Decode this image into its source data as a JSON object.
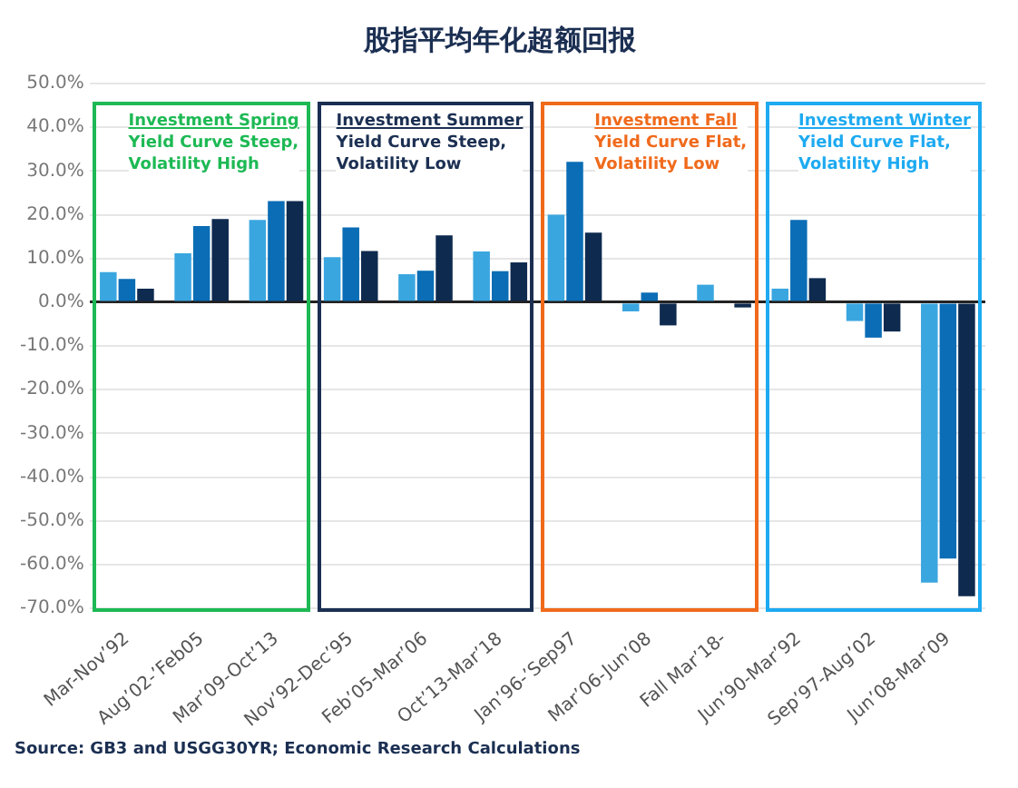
{
  "chart_data": {
    "type": "bar",
    "title": "股指平均年化超额回报",
    "categories": [
      "Mar-Nov’92",
      "Aug’02-’Feb05",
      "Mar’09-Oct’13",
      "Nov’92-Dec’95",
      "Feb’05-Mar’06",
      "Oct’13-Mar’18",
      "Jan’96-’Sep97",
      "Mar’06-Jun’08",
      "Fall Mar’18-",
      "Jun’90-Mar’92",
      "Sep’97-Aug’02",
      "Jun’08-Mar’09"
    ],
    "series": [
      {
        "color": "#3aa6e0",
        "values": [
          6.9,
          11.2,
          18.8,
          10.3,
          6.4,
          11.6,
          20.0,
          -2.1,
          4.0,
          3.1,
          -4.3,
          -64.1
        ]
      },
      {
        "color": "#0a6db5",
        "values": [
          5.3,
          17.4,
          23.1,
          17.1,
          7.2,
          7.1,
          32.1,
          2.2,
          0,
          18.8,
          -8.1,
          -58.6
        ]
      },
      {
        "color": "#0e2a4f",
        "values": [
          3.1,
          19.0,
          23.1,
          11.7,
          15.3,
          9.1,
          15.9,
          -5.3,
          -1.2,
          5.5,
          -6.7,
          -67.2
        ]
      }
    ],
    "ylim": [
      -70,
      50
    ],
    "yticks": [
      {
        "value": -70,
        "label": "-70.0%"
      },
      {
        "value": -60,
        "label": "-60.0%"
      },
      {
        "value": -50,
        "label": "-50.0%"
      },
      {
        "value": -40,
        "label": "-40.0%"
      },
      {
        "value": -30,
        "label": "-30.0%"
      },
      {
        "value": -20,
        "label": "-20.0%"
      },
      {
        "value": -10,
        "label": "-10.0%"
      },
      {
        "value": 0,
        "label": "0.0%"
      },
      {
        "value": 10,
        "label": "10.0%"
      },
      {
        "value": 20,
        "label": "20.0%"
      },
      {
        "value": 30,
        "label": "30.0%"
      },
      {
        "value": 40,
        "label": "40.0%"
      },
      {
        "value": 50,
        "label": "50.0%"
      }
    ],
    "grid": "y",
    "annotations": [
      "Investment Spring\nYield Curve Steep,\nVolatility High",
      "Investment Summer\nYield Curve Steep,\nVolatility Low",
      "Investment Fall\nYield Curve Flat,\nVolatility Low",
      "Investment Winter\nYield Curve Flat,\nVolatility High",
      "Source: GB3 and USGG30YR; Economic Research Calculations"
    ]
  }
}
